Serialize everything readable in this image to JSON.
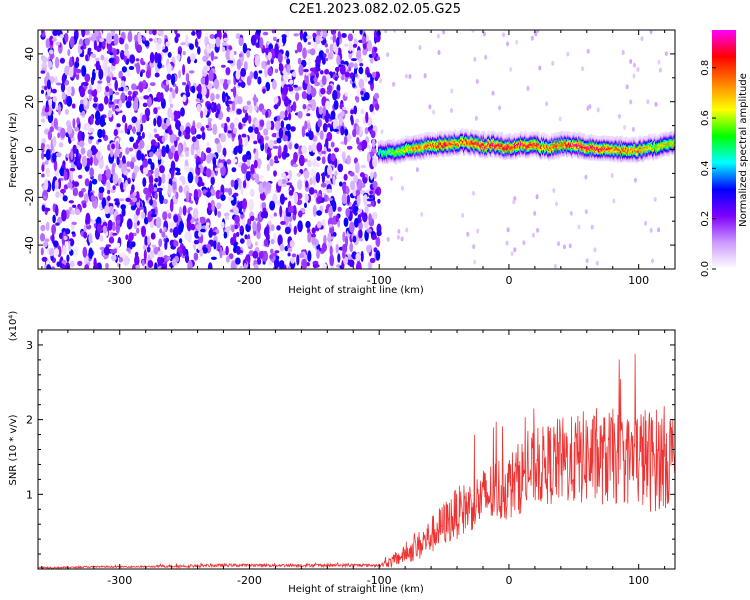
{
  "page": {
    "title": "C2E1.2023.082.02.05.G25"
  },
  "chart_data": [
    {
      "type": "heatmap",
      "title": "",
      "xlabel": "Height of straight line (km)",
      "ylabel": "Frequency (Hz)",
      "xlim": [
        -363,
        128
      ],
      "ylim": [
        -50,
        50
      ],
      "x_ticks": [
        -300,
        -200,
        -100,
        0,
        100
      ],
      "y_ticks": [
        -40,
        -20,
        0,
        20,
        40
      ],
      "colorbar": {
        "label": "Normalized spectral amplitude",
        "range": [
          0,
          0.95
        ],
        "ticks": [
          0.0,
          0.2,
          0.4,
          0.6,
          0.8
        ],
        "colors": [
          "#ffffff",
          "#cc99ff",
          "#7f00ff",
          "#0000ff",
          "#00ffff",
          "#00ff00",
          "#ffff00",
          "#ff8000",
          "#ff0000",
          "#ff00ff"
        ]
      },
      "series": [
        {
          "x": [
            -360,
            -350,
            -340,
            -330,
            -320,
            -310,
            -300,
            -290,
            -280,
            -270,
            -260,
            -250,
            -240,
            -230,
            -220,
            -210,
            -200,
            -190,
            -180,
            -170,
            -160,
            -150,
            -140,
            -130,
            -120,
            -110,
            -100
          ],
          "y": [
            0,
            0,
            0,
            0,
            0,
            0,
            0,
            0,
            0,
            0,
            0,
            0,
            0,
            0,
            0,
            0,
            0,
            0,
            0,
            0,
            0,
            0,
            0,
            0,
            0,
            0,
            0
          ],
          "spread": [
            50,
            50,
            50,
            50,
            50,
            50,
            50,
            50,
            50,
            50,
            50,
            50,
            50,
            50,
            50,
            50,
            50,
            50,
            50,
            50,
            50,
            50,
            50,
            50,
            50,
            50,
            50
          ],
          "peak_amplitude": [
            0.2,
            0.2,
            0.2,
            0.2,
            0.2,
            0.2,
            0.2,
            0.2,
            0.2,
            0.2,
            0.2,
            0.2,
            0.2,
            0.2,
            0.2,
            0.2,
            0.2,
            0.2,
            0.2,
            0.2,
            0.2,
            0.2,
            0.2,
            0.2,
            0.2,
            0.2,
            0.2
          ]
        },
        {
          "x": [
            -100,
            -90,
            -80,
            -70,
            -60,
            -50,
            -40,
            -30,
            -20,
            -10,
            0,
            10,
            20,
            30,
            40,
            50,
            60,
            70,
            80,
            90,
            100,
            110,
            120,
            128
          ],
          "y": [
            -1,
            -1,
            0,
            1,
            2,
            2,
            3,
            3,
            2,
            2,
            1,
            2,
            2,
            1,
            2,
            2,
            1,
            1,
            0,
            0,
            0,
            1,
            2,
            3
          ],
          "spread": [
            4,
            4,
            4,
            4,
            4,
            4,
            4,
            4,
            4,
            4,
            4,
            4,
            4,
            4,
            4,
            4,
            4,
            4,
            4,
            4,
            4,
            4,
            4,
            4
          ],
          "peak_amplitude": [
            0.5,
            0.6,
            0.7,
            0.8,
            0.8,
            0.9,
            0.8,
            0.9,
            0.9,
            0.9,
            0.9,
            0.9,
            0.9,
            0.8,
            0.8,
            0.9,
            0.9,
            0.9,
            0.8,
            0.8,
            0.8,
            0.7,
            0.7,
            0.7
          ]
        }
      ]
    },
    {
      "type": "line",
      "title": "",
      "xlabel": "Height of straight line (km)",
      "ylabel": "SNR (10 * v/v)",
      "y_multiplier_label": "(x10⁴)",
      "xlim": [
        -363,
        128
      ],
      "ylim": [
        0,
        3.2
      ],
      "x_ticks": [
        -300,
        -200,
        -100,
        0,
        100
      ],
      "y_ticks": [
        1,
        2,
        3
      ],
      "color": "#ee3333",
      "series": [
        {
          "x": [
            -363,
            -340,
            -320,
            -300,
            -280,
            -260,
            -240,
            -220,
            -200,
            -180,
            -160,
            -140,
            -120,
            -100,
            -90,
            -80,
            -70,
            -60,
            -50,
            -40,
            -30,
            -20,
            -10,
            0,
            10,
            20,
            30,
            40,
            50,
            60,
            70,
            80,
            90,
            100,
            110,
            120,
            128
          ],
          "values": [
            0.02,
            0.02,
            0.03,
            0.03,
            0.03,
            0.04,
            0.04,
            0.05,
            0.05,
            0.05,
            0.05,
            0.05,
            0.05,
            0.05,
            0.1,
            0.2,
            0.3,
            0.45,
            0.6,
            0.75,
            0.85,
            0.95,
            1.05,
            1.1,
            1.25,
            1.35,
            1.4,
            1.45,
            1.45,
            1.5,
            1.45,
            1.5,
            1.45,
            1.5,
            1.45,
            1.5,
            1.5
          ],
          "noise_amplitude": [
            0.01,
            0.01,
            0.01,
            0.01,
            0.01,
            0.02,
            0.02,
            0.02,
            0.02,
            0.02,
            0.02,
            0.02,
            0.02,
            0.02,
            0.08,
            0.12,
            0.2,
            0.25,
            0.3,
            0.35,
            0.35,
            0.4,
            0.45,
            0.45,
            0.5,
            0.5,
            0.55,
            0.6,
            0.6,
            0.65,
            0.6,
            0.65,
            0.6,
            0.7,
            0.7,
            0.7,
            0.65
          ]
        }
      ]
    }
  ]
}
